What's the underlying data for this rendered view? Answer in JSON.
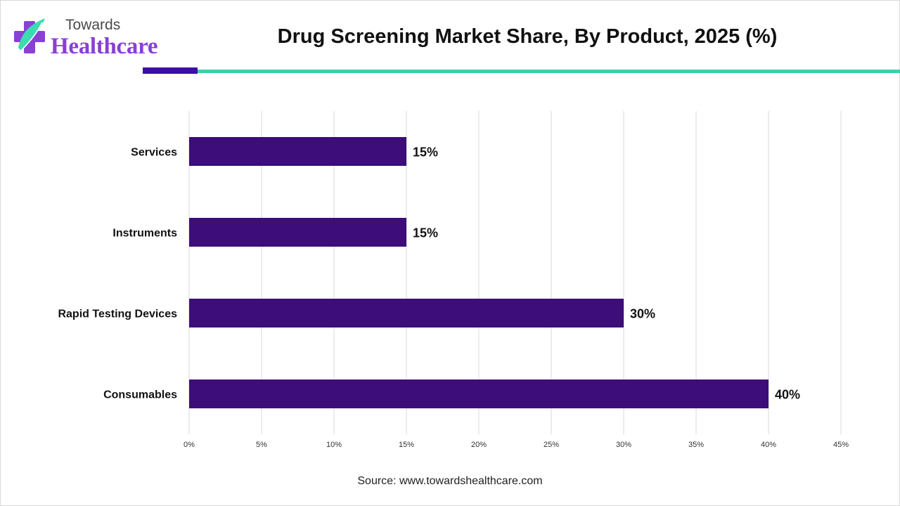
{
  "brand": {
    "logo_top": "Towards",
    "logo_main": "Healthcare",
    "logo_colors": {
      "purple": "#8a3fd6",
      "teal": "#3ddbb0",
      "grey": "#4a4a4a"
    }
  },
  "header": {
    "title": "Drug Screening Market Share, By Product, 2025 (%)",
    "rule_dark_color": "#3b0fa8",
    "rule_teal_color": "#3ecfa8"
  },
  "chart_data": {
    "type": "bar",
    "orientation": "horizontal",
    "categories": [
      "Services",
      "Instruments",
      "Rapid Testing Devices",
      "Consumables"
    ],
    "values": [
      15,
      15,
      30,
      40
    ],
    "data_labels": [
      "15%",
      "15%",
      "30%",
      "40%"
    ],
    "xlim": [
      0,
      45
    ],
    "xticks": [
      0,
      5,
      10,
      15,
      20,
      25,
      30,
      35,
      40,
      45
    ],
    "xtick_labels": [
      "0%",
      "5%",
      "10%",
      "15%",
      "20%",
      "25%",
      "30%",
      "35%",
      "40%",
      "45%"
    ],
    "title": "Drug Screening Market Share, By Product, 2025 (%)",
    "xlabel": "",
    "ylabel": "",
    "grid": "vertical",
    "legend": "none",
    "bar_color": "#3d0d7a",
    "grid_color": "#d9d9d9"
  },
  "footer": {
    "source": "Source: www.towardshealthcare.com"
  }
}
